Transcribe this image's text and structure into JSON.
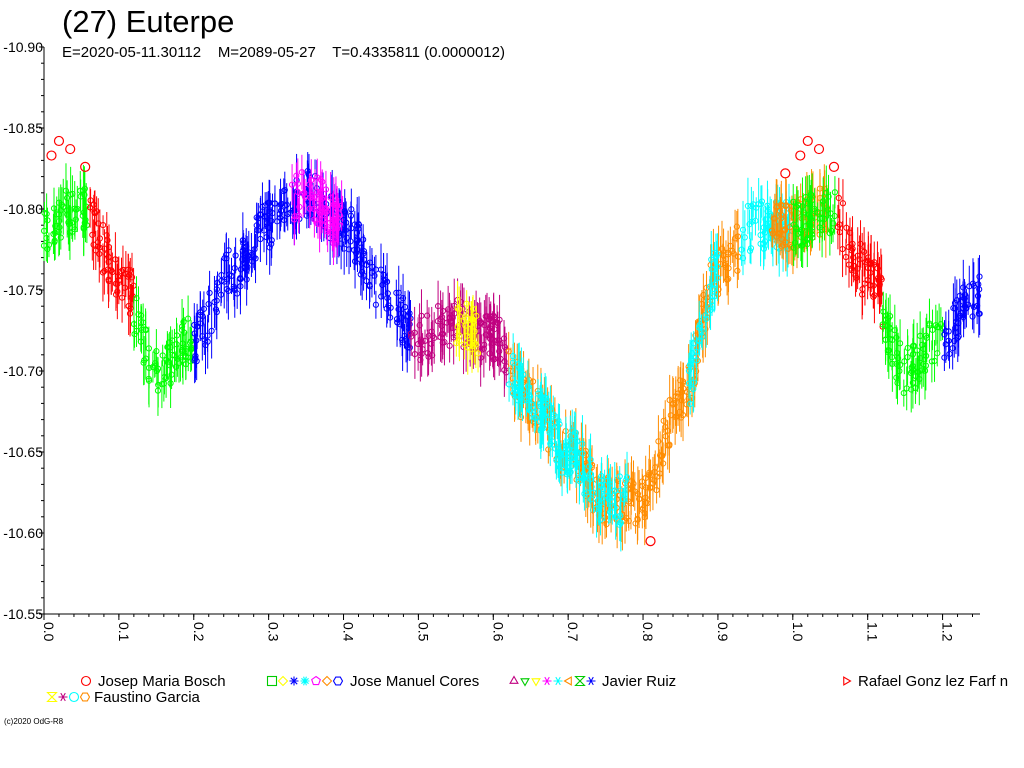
{
  "title": "(27) Euterpe",
  "subtitle": "E=2020-05-11.30112    M=2089-05-27    T=0.4335811 (0.0000012)",
  "copyright": "(c)2020 OdG-R8",
  "chart_data": {
    "type": "scatter",
    "xlim": [
      0.0,
      1.25
    ],
    "ylim": [
      -10.55,
      -10.9
    ],
    "y_inverted": true,
    "xticks": [
      "0.0",
      "0.1",
      "0.2",
      "0.3",
      "0.4",
      "0.5",
      "0.6",
      "0.7",
      "0.8",
      "0.9",
      "1.0",
      "1.1",
      "1.2"
    ],
    "yticks": [
      "-10.55",
      "-10.60",
      "-10.65",
      "-10.70",
      "-10.75",
      "-10.80",
      "-10.85",
      "-10.90"
    ],
    "grid": false,
    "legend_position": "bottom",
    "series_colors": [
      "#ff0000",
      "#00ff00",
      "#00ffff",
      "#0000ff",
      "#ff00ff",
      "#ffff00",
      "#ff8c00",
      "#c00080"
    ],
    "lightcurve": {
      "phase": [
        0.0,
        0.05,
        0.1,
        0.15,
        0.2,
        0.25,
        0.3,
        0.35,
        0.4,
        0.45,
        0.5,
        0.55,
        0.6,
        0.65,
        0.7,
        0.75,
        0.8,
        0.85,
        0.9,
        0.95,
        1.0,
        1.05,
        1.1,
        1.15,
        1.2,
        1.25
      ],
      "magnitude": [
        -10.79,
        -10.8,
        -10.76,
        -10.7,
        -10.72,
        -10.76,
        -10.79,
        -10.81,
        -10.79,
        -10.75,
        -10.72,
        -10.73,
        -10.72,
        -10.68,
        -10.65,
        -10.62,
        -10.62,
        -10.68,
        -10.76,
        -10.79,
        -10.79,
        -10.8,
        -10.76,
        -10.7,
        -10.72,
        -10.75
      ]
    },
    "segments": [
      {
        "series": 1,
        "x0": 0.0,
        "x1": 0.06
      },
      {
        "series": 0,
        "x0": 0.06,
        "x1": 0.12
      },
      {
        "series": 1,
        "x0": 0.12,
        "x1": 0.2
      },
      {
        "series": 3,
        "x0": 0.2,
        "x1": 0.3
      },
      {
        "series": 3,
        "x0": 0.3,
        "x1": 0.4
      },
      {
        "series": 4,
        "x0": 0.33,
        "x1": 0.4
      },
      {
        "series": 3,
        "x0": 0.4,
        "x1": 0.49
      },
      {
        "series": 7,
        "x0": 0.49,
        "x1": 0.62
      },
      {
        "series": 5,
        "x0": 0.55,
        "x1": 0.58
      },
      {
        "series": 6,
        "x0": 0.62,
        "x1": 0.8
      },
      {
        "series": 2,
        "x0": 0.62,
        "x1": 0.78
      },
      {
        "series": 6,
        "x0": 0.8,
        "x1": 0.93
      },
      {
        "series": 2,
        "x0": 0.86,
        "x1": 0.9
      },
      {
        "series": 2,
        "x0": 0.93,
        "x1": 1.0
      },
      {
        "series": 6,
        "x0": 0.97,
        "x1": 1.05
      },
      {
        "series": 1,
        "x0": 1.0,
        "x1": 1.06
      },
      {
        "series": 0,
        "x0": 1.06,
        "x1": 1.12
      },
      {
        "series": 1,
        "x0": 1.12,
        "x1": 1.2
      },
      {
        "series": 3,
        "x0": 1.2,
        "x1": 1.25
      }
    ],
    "bosch_points": [
      {
        "x": 0.01,
        "y": -10.833
      },
      {
        "x": 0.02,
        "y": -10.842
      },
      {
        "x": 0.035,
        "y": -10.837
      },
      {
        "x": 0.055,
        "y": -10.826
      },
      {
        "x": 0.81,
        "y": -10.595
      },
      {
        "x": 0.99,
        "y": -10.822
      },
      {
        "x": 1.01,
        "y": -10.833
      },
      {
        "x": 1.02,
        "y": -10.842
      },
      {
        "x": 1.035,
        "y": -10.837
      },
      {
        "x": 1.055,
        "y": -10.826
      }
    ]
  },
  "legend": {
    "row1": [
      {
        "label": "Josep Maria Bosch",
        "symbols": [
          {
            "shape": "circle",
            "color": "#ff0000"
          }
        ]
      },
      {
        "label": "Jose Manuel Cores",
        "symbols": [
          {
            "shape": "square",
            "color": "#00cc00"
          },
          {
            "shape": "diamond",
            "color": "#ffff00"
          },
          {
            "shape": "star4",
            "color": "#0000ff"
          },
          {
            "shape": "star",
            "color": "#00ffff"
          },
          {
            "shape": "pentagon",
            "color": "#ff00ff"
          },
          {
            "shape": "diamond",
            "color": "#ff8c00"
          },
          {
            "shape": "hexagon",
            "color": "#0000ff"
          }
        ]
      },
      {
        "label": "Javier Ruiz",
        "symbols": [
          {
            "shape": "triangle-up",
            "color": "#c00080"
          },
          {
            "shape": "triangle-down",
            "color": "#00cc00"
          },
          {
            "shape": "triangle-down",
            "color": "#ffff00"
          },
          {
            "shape": "asterisk",
            "color": "#ff00ff"
          },
          {
            "shape": "asterisk",
            "color": "#00ffff"
          },
          {
            "shape": "triangle-left",
            "color": "#ff8c00"
          },
          {
            "shape": "hourglass",
            "color": "#00cc00"
          },
          {
            "shape": "asterisk",
            "color": "#0000ff"
          }
        ]
      },
      {
        "label": "Rafael Gonz lez Farf n",
        "symbols": [
          {
            "shape": "triangle-right",
            "color": "#ff0000"
          }
        ]
      }
    ],
    "row2": [
      {
        "label": "Faustino Garcia",
        "symbols": [
          {
            "shape": "hourglass",
            "color": "#ffff00"
          },
          {
            "shape": "asterisk",
            "color": "#c00080"
          },
          {
            "shape": "circle",
            "color": "#00ffff"
          },
          {
            "shape": "hexagon",
            "color": "#ff8c00"
          }
        ]
      }
    ]
  }
}
